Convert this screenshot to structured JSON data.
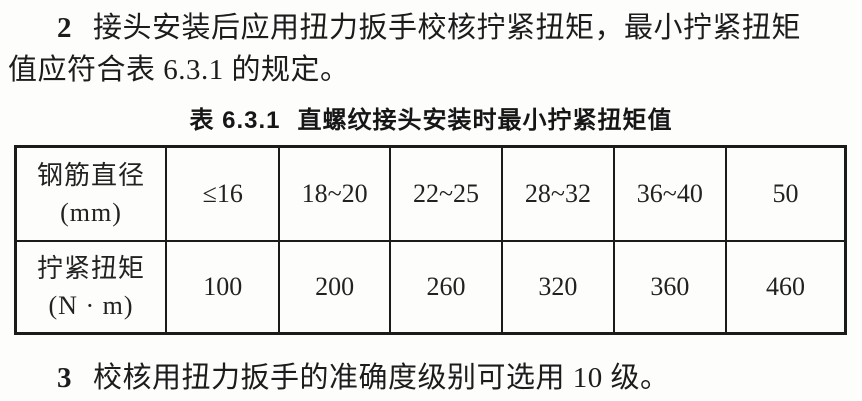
{
  "page": {
    "background_color": "#fdfdfc",
    "text_color": "#1c1c1c"
  },
  "clauses": {
    "c2": {
      "number": "2",
      "line1": "接头安装后应用扭力扳手校核拧紧扭矩，最小拧紧扭矩",
      "line2": "值应符合表 6.3.1 的规定。"
    },
    "c3": {
      "number": "3",
      "text": "校核用扭力扳手的准确度级别可选用 10 级。"
    }
  },
  "table": {
    "caption_label": "表 6.3.1",
    "caption_text": "直螺纹接头安装时最小拧紧扭矩值",
    "rows": [
      {
        "header": "钢筋直径",
        "unit": "(mm)",
        "cells": [
          "≤16",
          "18~20",
          "22~25",
          "28~32",
          "36~40",
          "50"
        ]
      },
      {
        "header": "拧紧扭矩",
        "unit": "(N · m)",
        "cells": [
          "100",
          "200",
          "260",
          "320",
          "360",
          "460"
        ]
      }
    ]
  }
}
